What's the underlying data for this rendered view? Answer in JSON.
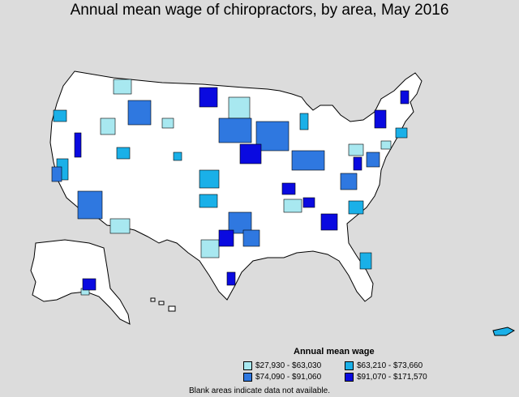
{
  "title": "Annual mean wage of chiropractors, by area, May 2016",
  "legend": {
    "title": "Annual mean wage",
    "items": [
      {
        "label": "$27,930 - $63,030",
        "color": "#a8e8f0"
      },
      {
        "label": "$63,210 - $73,660",
        "color": "#1ab0e8"
      },
      {
        "label": "$74,090 - $91,060",
        "color": "#2f78e0"
      },
      {
        "label": "$91,070 - $171,570",
        "color": "#0a0ae0"
      }
    ]
  },
  "footnote": "Blank areas indicate data not available.",
  "colors": {
    "background": "#dcdcdc",
    "land": "#ffffff",
    "border": "#000000"
  }
}
